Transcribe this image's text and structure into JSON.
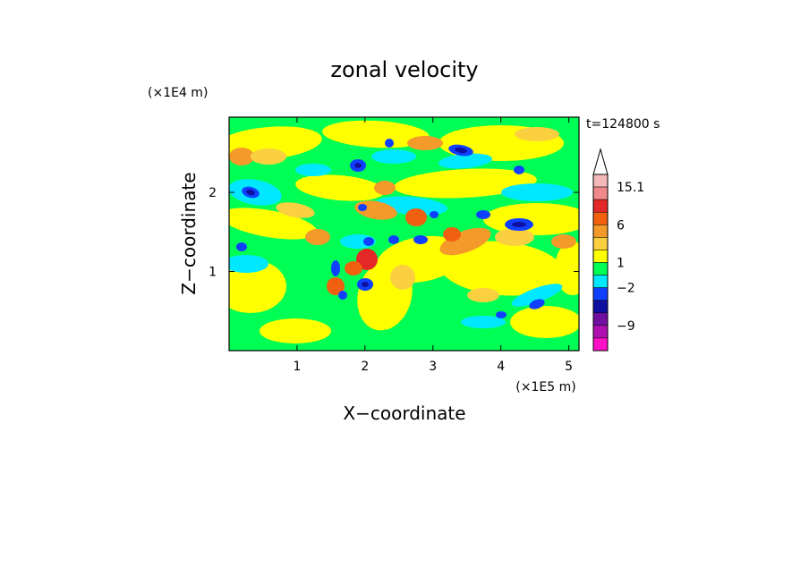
{
  "chart_data": {
    "type": "heatmap",
    "title": "zonal velocity",
    "xlabel": "X−coordinate",
    "ylabel": "Z−coordinate",
    "x_unit": "(×1E5 m)",
    "y_unit": "(×1E4 m)",
    "time_label": "t=124800 s",
    "xlim": [
      0,
      5.15
    ],
    "ylim": [
      0,
      2.95
    ],
    "xticks": [
      1,
      2,
      3,
      4,
      5
    ],
    "yticks": [
      1,
      2
    ],
    "xtick_labels": [
      "1",
      "2",
      "3",
      "4",
      "5"
    ],
    "ytick_labels": [
      "1",
      "2"
    ],
    "colorbar": {
      "bins_from_top": [
        {
          "color": "#f4b8b8",
          "label": "15.1"
        },
        {
          "color": "#f08a8a",
          "label": ""
        },
        {
          "color": "#e42828",
          "label": ""
        },
        {
          "color": "#f06010",
          "label": "6"
        },
        {
          "color": "#f49a2a",
          "label": ""
        },
        {
          "color": "#fad040",
          "label": ""
        },
        {
          "color": "#ffff00",
          "label": "1"
        },
        {
          "color": "#00ff55",
          "label": ""
        },
        {
          "color": "#00e8ff",
          "label": "−2"
        },
        {
          "color": "#1040ff",
          "label": ""
        },
        {
          "color": "#1010a0",
          "label": ""
        },
        {
          "color": "#7010a0",
          "label": "−9"
        },
        {
          "color": "#b010b0",
          "label": ""
        },
        {
          "color": "#ff10c8",
          "label": ""
        }
      ],
      "extend_top": true,
      "extend_top_color": "#ffffff"
    }
  }
}
